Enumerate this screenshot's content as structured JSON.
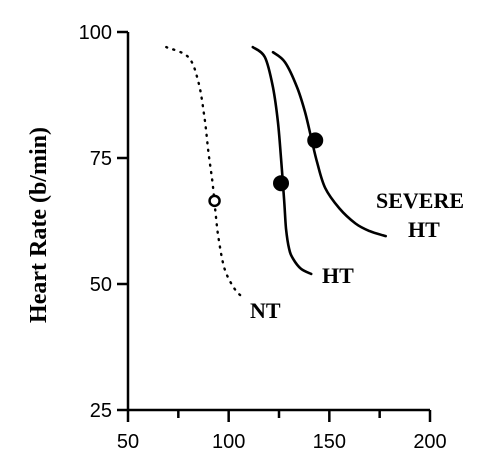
{
  "chart_data": {
    "type": "line",
    "title": "",
    "xlabel": "",
    "ylabel": "Heart Rate (b/min)",
    "xlim": [
      50,
      200
    ],
    "ylim": [
      25,
      100
    ],
    "xticks": [
      50,
      100,
      150,
      200
    ],
    "yticks": [
      25,
      50,
      75,
      100
    ],
    "grid": false,
    "series": [
      {
        "name": "NT",
        "style": "dotted",
        "x": [
          69,
          80,
          85,
          88,
          90,
          92,
          93.5,
          95,
          98,
          103,
          108
        ],
        "y": [
          97,
          95,
          90,
          83,
          76,
          70,
          64,
          59,
          53,
          49,
          47
        ],
        "marker": {
          "x": 93,
          "y": 66.5,
          "fill": "open"
        }
      },
      {
        "name": "HT",
        "style": "solid",
        "x": [
          112,
          118,
          122,
          124.5,
          126,
          127.5,
          128.5,
          130,
          132,
          136,
          141
        ],
        "y": [
          97,
          95,
          89,
          82,
          75,
          67,
          61,
          57,
          55,
          53,
          52
        ],
        "marker": {
          "x": 126,
          "y": 70,
          "fill": "filled"
        }
      },
      {
        "name": "SEVERE HT",
        "style": "solid",
        "x": [
          122,
          128,
          134,
          138,
          141,
          144,
          148,
          155,
          163,
          170,
          178
        ],
        "y": [
          96,
          94,
          89,
          84,
          79,
          74,
          69,
          65,
          62,
          60.5,
          59.5
        ],
        "marker": {
          "x": 143,
          "y": 78.5,
          "fill": "filled"
        }
      }
    ],
    "labels": [
      {
        "series": "NT",
        "lines": [
          "NT"
        ]
      },
      {
        "series": "HT",
        "lines": [
          "HT"
        ]
      },
      {
        "series": "SEVERE HT",
        "lines": [
          "SEVERE",
          "HT"
        ]
      }
    ]
  }
}
